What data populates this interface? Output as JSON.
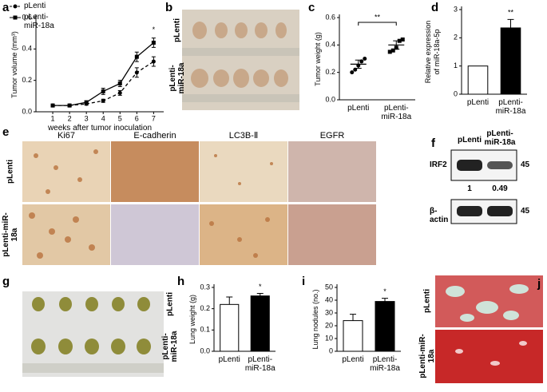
{
  "panel_letters": [
    "a",
    "b",
    "c",
    "d",
    "e",
    "f",
    "g",
    "h",
    "i",
    "j"
  ],
  "chart_data": [
    {
      "type": "line",
      "ylabel": "Tumor volume (mm³)",
      "xlabel": "weeks after tumor inoculation",
      "x": [
        1,
        2,
        3,
        4,
        5,
        6,
        7
      ],
      "xlim": [
        0,
        7.6
      ],
      "xticks": [
        1,
        2,
        3,
        4,
        5,
        6,
        7
      ],
      "ylim": [
        0,
        0.6
      ],
      "yticks": [
        {
          "value": 0,
          "label": "0.0"
        },
        0.2,
        0.4,
        0.6
      ],
      "legend": "upper left",
      "annotation": "*",
      "series": [
        {
          "name": "pLenti",
          "color": "#000000",
          "dashed": true,
          "marker": "circle",
          "values": [
            0.04,
            0.04,
            0.05,
            0.07,
            0.12,
            0.25,
            0.32
          ],
          "errors": [
            0.005,
            0.005,
            0.008,
            0.01,
            0.015,
            0.03,
            0.03
          ]
        },
        {
          "name": "pLenti-miR-18a",
          "color": "#000000",
          "dashed": false,
          "marker": "square",
          "values": [
            0.04,
            0.04,
            0.06,
            0.13,
            0.18,
            0.35,
            0.44
          ],
          "errors": [
            0.005,
            0.006,
            0.01,
            0.02,
            0.02,
            0.03,
            0.03
          ]
        }
      ]
    },
    {
      "type": "dot",
      "ylabel": "Tumor weight (g)",
      "categories": [
        "pLenti",
        "pLenti-miR-18a"
      ],
      "ylim": [
        0,
        0.6
      ],
      "yticks": [
        {
          "value": 0,
          "label": "0.0"
        },
        0.2,
        0.4,
        0.6
      ],
      "points": [
        [
          0.2,
          0.22,
          0.25,
          0.28,
          0.3
        ],
        [
          0.35,
          0.36,
          0.38,
          0.43,
          0.44
        ]
      ],
      "means": [
        0.26,
        0.4
      ],
      "errors": [
        0.03,
        0.03
      ],
      "annotation": "**"
    },
    {
      "type": "bar",
      "ylabel": [
        "Relative expression",
        "of miR-18a-5p"
      ],
      "categories": [
        "pLenti",
        "pLenti-miR-18a"
      ],
      "values": [
        1,
        2.35
      ],
      "errors": [
        0,
        0.3
      ],
      "colors": [
        "#ffffff",
        "#000000"
      ],
      "ylim": [
        0,
        3
      ],
      "yticks": [
        0,
        1,
        2,
        3
      ],
      "annotation": "**"
    },
    {
      "type": "bar",
      "ylabel": "Lung weight (g)",
      "categories": [
        "pLenti",
        "pLenti-miR-18a"
      ],
      "values": [
        0.22,
        0.26
      ],
      "errors": [
        0.035,
        0.012
      ],
      "colors": [
        "#ffffff",
        "#000000"
      ],
      "ylim": [
        0,
        0.3
      ],
      "yticks": [
        {
          "value": 0,
          "label": "0.0"
        },
        0.1,
        0.2,
        0.3
      ],
      "annotation": "*"
    },
    {
      "type": "bar",
      "ylabel": "Lung nodules (no.)",
      "categories": [
        "pLenti",
        "pLenti-miR-18a"
      ],
      "values": [
        24,
        39
      ],
      "errors": [
        5,
        2.5
      ],
      "colors": [
        "#ffffff",
        "#000000"
      ],
      "ylim": [
        0,
        50
      ],
      "yticks": [
        0,
        10,
        20,
        30,
        40,
        50
      ],
      "annotation": "*"
    }
  ],
  "panel_b": {
    "rows": [
      "pLenti",
      "pLenti-miR-18a"
    ]
  },
  "panel_e": {
    "columns": [
      "Ki67",
      "E-cadherin",
      "LC3B-Ⅱ",
      "EGFR"
    ],
    "rows": [
      "pLenti",
      "pLenti-miR-18a"
    ]
  },
  "panel_f": {
    "columns": [
      "pLenti",
      "pLenti-miR-18a"
    ],
    "bands": [
      {
        "label": "IRF2",
        "size": 45,
        "ratios": [
          1,
          0.49
        ]
      },
      {
        "label": "β-actin",
        "size": 45
      }
    ]
  },
  "panel_g": {
    "rows": [
      "pLenti",
      "pLenti-miR-18a"
    ]
  },
  "panel_j": {
    "rows": [
      "pLenti",
      "pLenti-miR-18a"
    ]
  }
}
